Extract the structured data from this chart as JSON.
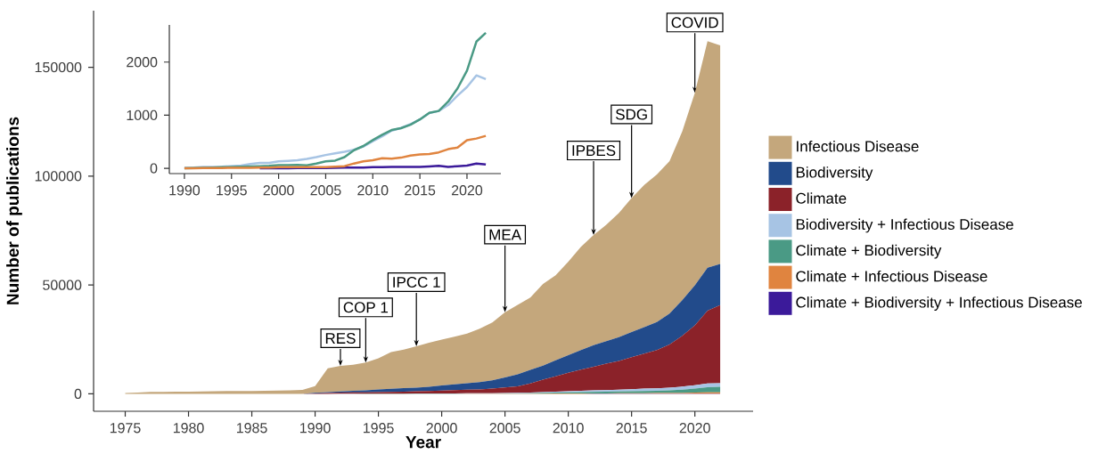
{
  "chart_data": [
    {
      "type": "area",
      "stacked": true,
      "xlabel": "Year",
      "ylabel": "Number of publications",
      "legend": "right",
      "x": [
        1975,
        1976,
        1977,
        1978,
        1979,
        1980,
        1981,
        1982,
        1983,
        1984,
        1985,
        1986,
        1987,
        1988,
        1989,
        1990,
        1991,
        1992,
        1993,
        1994,
        1995,
        1996,
        1997,
        1998,
        1999,
        2000,
        2001,
        2002,
        2003,
        2004,
        2005,
        2006,
        2007,
        2008,
        2009,
        2010,
        2011,
        2012,
        2013,
        2014,
        2015,
        2016,
        2017,
        2018,
        2019,
        2020,
        2021,
        2022
      ],
      "series": [
        {
          "name": "Climate + Biodiversity + Infectious Disease",
          "color": "#3b1a9a",
          "values": [
            0,
            0,
            0,
            0,
            0,
            0,
            0,
            0,
            0,
            0,
            0,
            0,
            0,
            0,
            0,
            0,
            0,
            0,
            0,
            0,
            0,
            0,
            0,
            0,
            0,
            0,
            0,
            5,
            5,
            5,
            5,
            10,
            15,
            15,
            15,
            20,
            20,
            25,
            25,
            25,
            25,
            35,
            45,
            25,
            40,
            50,
            90,
            70
          ]
        },
        {
          "name": "Climate + Infectious Disease",
          "color": "#e0843f",
          "values": [
            0,
            0,
            0,
            0,
            0,
            0,
            0,
            0,
            0,
            0,
            0,
            0,
            0,
            0,
            0,
            0,
            0,
            5,
            5,
            5,
            10,
            10,
            10,
            15,
            15,
            20,
            20,
            20,
            20,
            20,
            20,
            30,
            40,
            90,
            130,
            150,
            190,
            180,
            200,
            240,
            260,
            270,
            300,
            360,
            390,
            530,
            560,
            610
          ]
        },
        {
          "name": "Climate + Biodiversity",
          "color": "#4a9a85",
          "values": [
            0,
            0,
            0,
            0,
            0,
            0,
            0,
            0,
            0,
            0,
            0,
            0,
            0,
            0,
            0,
            0,
            5,
            10,
            15,
            20,
            25,
            30,
            35,
            40,
            45,
            60,
            60,
            65,
            55,
            90,
            130,
            145,
            210,
            340,
            420,
            530,
            630,
            720,
            755,
            820,
            920,
            1045,
            1080,
            1255,
            1505,
            1840,
            2385,
            2550
          ]
        },
        {
          "name": "Biodiversity + Infectious Disease",
          "color": "#a7c4e4",
          "values": [
            0,
            0,
            0,
            0,
            0,
            0,
            0,
            0,
            0,
            0,
            0,
            0,
            0,
            0,
            0,
            10,
            15,
            25,
            25,
            30,
            40,
            50,
            80,
            100,
            100,
            130,
            140,
            150,
            175,
            210,
            250,
            280,
            310,
            350,
            410,
            510,
            600,
            710,
            760,
            830,
            920,
            1040,
            1080,
            1190,
            1370,
            1530,
            1750,
            1680
          ]
        },
        {
          "name": "Climate",
          "color": "#8b2229",
          "values": [
            0,
            0,
            0,
            0,
            0,
            0,
            0,
            0,
            0,
            0,
            0,
            0,
            0,
            0,
            0,
            200,
            400,
            500,
            600,
            600,
            700,
            800,
            900,
            1000,
            1100,
            1300,
            1500,
            1700,
            1800,
            2100,
            2500,
            3000,
            4200,
            5700,
            7100,
            8500,
            9700,
            10800,
            12100,
            13200,
            14700,
            16100,
            17600,
            19800,
            23300,
            27500,
            33400,
            35800
          ]
        },
        {
          "name": "Biodiversity",
          "color": "#224b8b",
          "values": [
            0,
            0,
            0,
            0,
            0,
            0,
            0,
            0,
            0,
            0,
            0,
            0,
            0,
            0,
            0,
            300,
            400,
            600,
            800,
            1000,
            1200,
            1400,
            1600,
            1700,
            2000,
            2300,
            2600,
            2900,
            3300,
            3800,
            4600,
            5500,
            6200,
            6500,
            7300,
            8100,
            9000,
            9900,
            10400,
            10900,
            11600,
            12200,
            12900,
            14200,
            16400,
            18400,
            19700,
            19000
          ]
        },
        {
          "name": "Infectious Disease",
          "color": "#c4a77c",
          "values": [
            400,
            600,
            900,
            900,
            1000,
            1000,
            1100,
            1200,
            1300,
            1300,
            1300,
            1400,
            1500,
            1600,
            1800,
            3000,
            10900,
            11700,
            11900,
            12700,
            14400,
            16900,
            17700,
            19000,
            20200,
            21100,
            21900,
            22800,
            24600,
            26600,
            30000,
            31900,
            33300,
            37500,
            39100,
            42900,
            47400,
            50600,
            53400,
            57100,
            61500,
            65300,
            67800,
            70100,
            77500,
            88400,
            104100,
            100300
          ]
        }
      ],
      "xlim": [
        1972.5,
        2024.6
      ],
      "ylim": [
        -8000,
        176000
      ],
      "xticks": [
        1975,
        1980,
        1985,
        1990,
        1995,
        2000,
        2005,
        2010,
        2015,
        2020
      ],
      "yticks": [
        0,
        50000,
        100000,
        150000
      ],
      "annotations": [
        {
          "text": "RES",
          "x": 1992,
          "y": 12840
        },
        {
          "text": "COP 1",
          "x": 1994,
          "y": 14355
        },
        {
          "text": "IPCC 1",
          "x": 1998,
          "y": 21855
        },
        {
          "text": "MEA",
          "x": 2005,
          "y": 37505
        },
        {
          "text": "IPBES",
          "x": 2012,
          "y": 72935
        },
        {
          "text": "SDG",
          "x": 2015,
          "y": 89925
        },
        {
          "text": "COVID",
          "x": 2020,
          "y": 138250
        }
      ]
    },
    {
      "type": "line",
      "x": [
        1990,
        1991,
        1992,
        1993,
        1994,
        1995,
        1996,
        1997,
        1998,
        1999,
        2000,
        2001,
        2002,
        2003,
        2004,
        2005,
        2006,
        2007,
        2008,
        2009,
        2010,
        2011,
        2012,
        2013,
        2014,
        2015,
        2016,
        2017,
        2018,
        2019,
        2020,
        2021,
        2022
      ],
      "series": [
        {
          "color": "#a7c4e4",
          "values": [
            10,
            15,
            25,
            25,
            30,
            40,
            50,
            80,
            100,
            100,
            130,
            140,
            150,
            175,
            210,
            250,
            280,
            310,
            350,
            410,
            510,
            600,
            710,
            760,
            830,
            920,
            1040,
            1080,
            1190,
            1370,
            1530,
            1750,
            1680
          ]
        },
        {
          "color": "#4a9a85",
          "values": [
            0,
            5,
            10,
            15,
            20,
            25,
            30,
            35,
            40,
            45,
            60,
            60,
            65,
            55,
            90,
            130,
            145,
            210,
            340,
            420,
            530,
            630,
            720,
            755,
            820,
            920,
            1045,
            1080,
            1255,
            1505,
            1840,
            2385,
            2550
          ]
        },
        {
          "color": "#3b1a9a",
          "values": [
            null,
            null,
            null,
            null,
            null,
            null,
            null,
            null,
            0,
            0,
            0,
            0,
            5,
            5,
            5,
            5,
            10,
            15,
            15,
            15,
            20,
            20,
            25,
            25,
            25,
            25,
            35,
            45,
            25,
            40,
            50,
            90,
            70
          ]
        },
        {
          "color": "#e0843f",
          "values": [
            0,
            0,
            5,
            5,
            5,
            10,
            10,
            10,
            15,
            15,
            20,
            20,
            20,
            20,
            20,
            20,
            30,
            40,
            90,
            130,
            150,
            190,
            180,
            200,
            240,
            260,
            270,
            300,
            360,
            390,
            530,
            560,
            610
          ]
        }
      ],
      "xlim": [
        1988.4,
        2023.6
      ],
      "ylim": [
        -100,
        2700
      ],
      "xticks": [
        1990,
        1995,
        2000,
        2005,
        2010,
        2015,
        2020
      ],
      "yticks": [
        0,
        1000,
        2000
      ]
    }
  ]
}
